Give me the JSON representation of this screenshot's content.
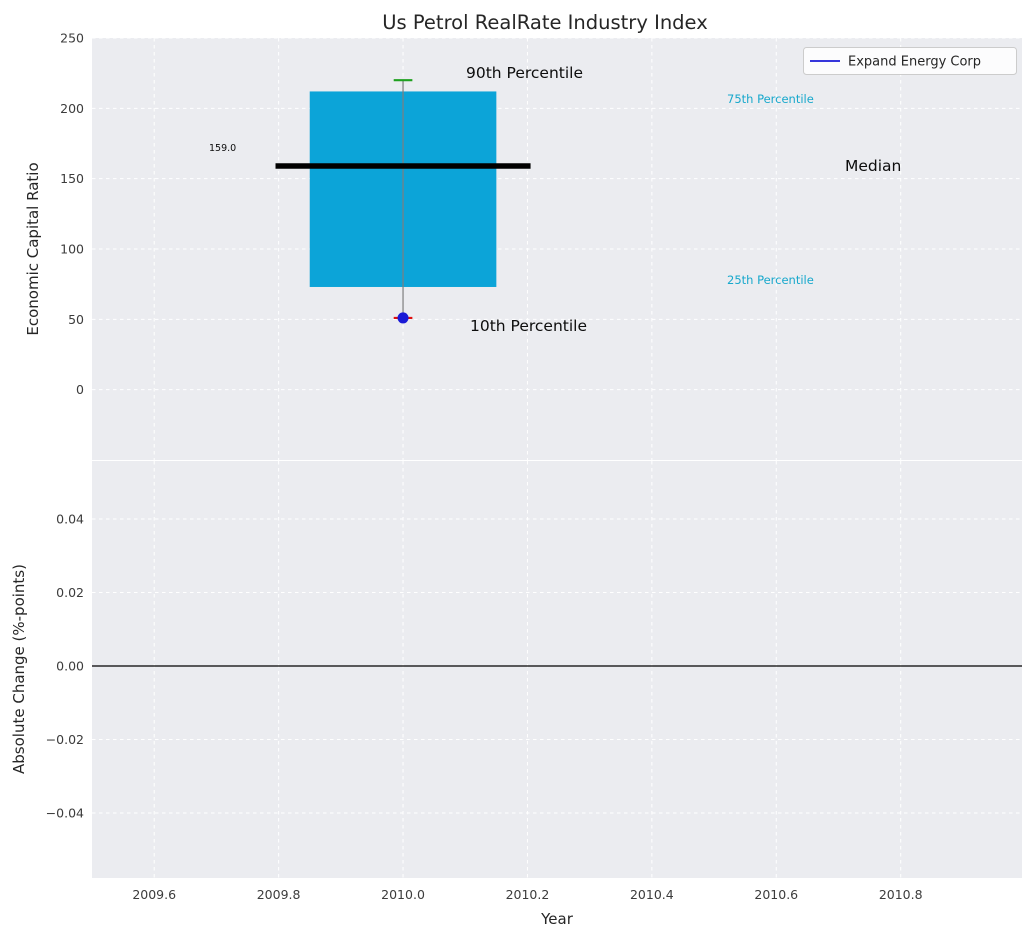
{
  "figure": {
    "title": "Us Petrol RealRate Industry Index"
  },
  "colors": {
    "axes_background": "#ebecf0",
    "grid": "#ffffff",
    "box_fill": "#0ca4d8",
    "median_line": "#000000",
    "whisker": "#7f7f7f",
    "cap_90th": "#1fa01f",
    "cap_10th": "#e01010",
    "series_blue": "#1a1ad6",
    "percentile_label": "#17a8cc",
    "zero_line": "#000000",
    "title_text": "#262626",
    "tick_text": "#3c3c3c"
  },
  "chart_data": [
    {
      "type": "boxplot",
      "title": "Us Petrol RealRate Industry Index",
      "xlabel": "",
      "ylabel": "Economic Capital Ratio",
      "xlim": [
        2009.5,
        2010.995
      ],
      "ylim": [
        -50,
        250
      ],
      "yticks": [
        0,
        50,
        100,
        150,
        200,
        250
      ],
      "ytick_labels": [
        "0",
        "50",
        "100",
        "150",
        "200",
        "250"
      ],
      "xticks": [
        2009.6,
        2009.8,
        2010.0,
        2010.2,
        2010.4,
        2010.6,
        2010.8
      ],
      "grid": true,
      "legend": {
        "label": "Expand Energy Corp",
        "position": "upper right"
      },
      "box": {
        "x": 2010.0,
        "p10": 51,
        "q25": 73,
        "median": 159,
        "q75": 212,
        "p90": 220,
        "box_halfwidth": 0.15,
        "median_halfwidth": 0.205,
        "cap_halfwidth": 0.015
      },
      "company_point": {
        "label": "Expand Energy Corp",
        "x": 2010.0,
        "y": 51
      },
      "annotations": [
        {
          "text": "90th Percentile",
          "x": 2010.1,
          "y": 225
        },
        {
          "text": "10th Percentile",
          "x": 2010.11,
          "y": 45
        },
        {
          "text": "Median",
          "x": 2010.71,
          "y": 159
        },
        {
          "text": "75th Percentile",
          "x": 2010.52,
          "y": 206
        },
        {
          "text": "25th Percentile",
          "x": 2010.52,
          "y": 78
        },
        {
          "text": "159.0",
          "x": 2009.69,
          "y": 170
        }
      ]
    },
    {
      "type": "line",
      "title": "",
      "xlabel": "Year",
      "ylabel": "Absolute Change (%-points)",
      "xlim": [
        2009.5,
        2010.995
      ],
      "ylim": [
        -0.0577,
        0.0558
      ],
      "yticks": [
        -0.04,
        -0.02,
        0,
        0.02,
        0.04
      ],
      "ytick_labels": [
        "−0.04",
        "−0.02",
        "0.00",
        "0.02",
        "0.04"
      ],
      "xticks": [
        2009.6,
        2009.8,
        2010.0,
        2010.2,
        2010.4,
        2010.6,
        2010.8
      ],
      "xtick_labels": [
        "2009.6",
        "2009.8",
        "2010.0",
        "2010.2",
        "2010.4",
        "2010.6",
        "2010.8"
      ],
      "grid": true,
      "zero_line": 0.0,
      "series": []
    }
  ]
}
